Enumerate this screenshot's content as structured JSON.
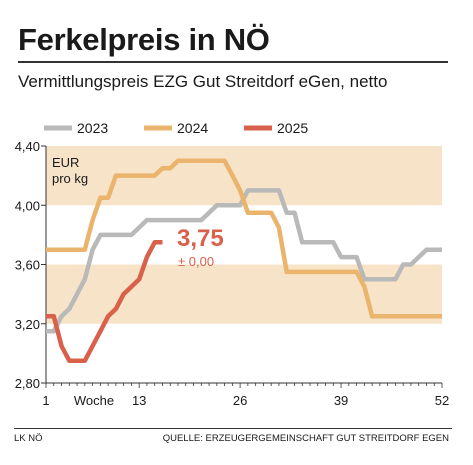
{
  "header": {
    "title": "Ferkelpreis in NÖ",
    "subtitle": "Vermittlungspreis EZG Gut Streitdorf eGen, netto"
  },
  "footer": {
    "left": "LK NÖ",
    "right": "QUELLE: ERZEUGERGEMEINSCHAFT GUT STREITDORF EGEN"
  },
  "colors": {
    "band": "#f7e3c8",
    "s2023": "#b9b9b9",
    "s2024": "#eab46d",
    "s2025": "#d9614c",
    "axis": "#333333"
  },
  "chart_data": {
    "type": "line",
    "unit_label_line1": "EUR",
    "unit_label_line2": "pro kg",
    "xlim": [
      1,
      52
    ],
    "ylim": [
      2.8,
      4.4
    ],
    "y_ticks": [
      2.8,
      3.2,
      3.6,
      4.0,
      4.4
    ],
    "y_tick_labels": [
      "2,80",
      "3,20",
      "3,60",
      "4,00",
      "4,40"
    ],
    "x_ticks": [
      1,
      13,
      26,
      39,
      52
    ],
    "x_tick_labels": [
      "1",
      "13",
      "26",
      "39",
      "52"
    ],
    "x_axis_label": "Woche",
    "annotation": {
      "value": "3,75",
      "change": "± 0,00"
    },
    "series": [
      {
        "name": "2023",
        "color_key": "s2023",
        "x": [
          1,
          2,
          3,
          4,
          5,
          6,
          7,
          8,
          9,
          10,
          11,
          12,
          13,
          14,
          15,
          16,
          17,
          18,
          19,
          20,
          21,
          22,
          23,
          24,
          25,
          26,
          27,
          28,
          29,
          30,
          31,
          32,
          33,
          34,
          35,
          36,
          37,
          38,
          39,
          40,
          41,
          42,
          43,
          44,
          45,
          46,
          47,
          48,
          49,
          50,
          51,
          52
        ],
        "y": [
          3.15,
          3.15,
          3.25,
          3.3,
          3.4,
          3.5,
          3.7,
          3.8,
          3.8,
          3.8,
          3.8,
          3.8,
          3.85,
          3.9,
          3.9,
          3.9,
          3.9,
          3.9,
          3.9,
          3.9,
          3.9,
          3.95,
          4.0,
          4.0,
          4.0,
          4.0,
          4.1,
          4.1,
          4.1,
          4.1,
          4.1,
          3.95,
          3.95,
          3.75,
          3.75,
          3.75,
          3.75,
          3.75,
          3.65,
          3.65,
          3.65,
          3.5,
          3.5,
          3.5,
          3.5,
          3.5,
          3.6,
          3.6,
          3.65,
          3.7,
          3.7,
          3.7
        ]
      },
      {
        "name": "2024",
        "color_key": "s2024",
        "x": [
          1,
          2,
          3,
          4,
          5,
          6,
          7,
          8,
          9,
          10,
          11,
          12,
          13,
          14,
          15,
          16,
          17,
          18,
          19,
          20,
          21,
          22,
          23,
          24,
          25,
          26,
          27,
          28,
          29,
          30,
          31,
          32,
          33,
          34,
          35,
          36,
          37,
          38,
          39,
          40,
          41,
          42,
          43,
          44,
          45,
          46,
          47,
          48,
          49,
          50,
          51,
          52
        ],
        "y": [
          3.7,
          3.7,
          3.7,
          3.7,
          3.7,
          3.7,
          3.9,
          4.05,
          4.05,
          4.2,
          4.2,
          4.2,
          4.2,
          4.2,
          4.2,
          4.25,
          4.25,
          4.3,
          4.3,
          4.3,
          4.3,
          4.3,
          4.3,
          4.3,
          4.2,
          4.1,
          3.95,
          3.95,
          3.95,
          3.95,
          3.85,
          3.55,
          3.55,
          3.55,
          3.55,
          3.55,
          3.55,
          3.55,
          3.55,
          3.55,
          3.55,
          3.45,
          3.25,
          3.25,
          3.25,
          3.25,
          3.25,
          3.25,
          3.25,
          3.25,
          3.25,
          3.25
        ]
      },
      {
        "name": "2025",
        "color_key": "s2025",
        "x": [
          1,
          2,
          3,
          4,
          5,
          6,
          7,
          8,
          9,
          10,
          11,
          12,
          13,
          14,
          15,
          16
        ],
        "y": [
          3.25,
          3.25,
          3.05,
          2.95,
          2.95,
          2.95,
          3.05,
          3.15,
          3.25,
          3.3,
          3.4,
          3.45,
          3.5,
          3.65,
          3.75,
          3.75
        ]
      }
    ]
  }
}
